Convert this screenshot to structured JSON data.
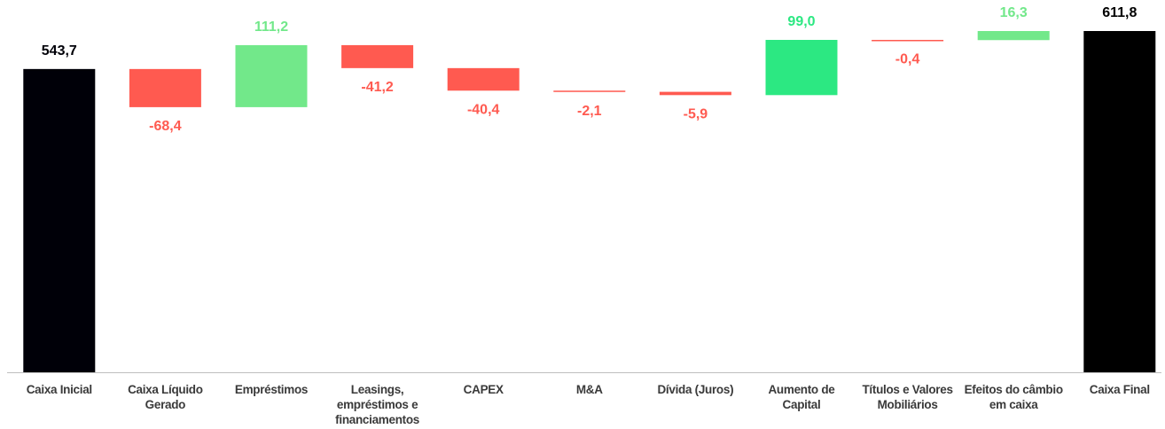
{
  "chart_data": {
    "type": "waterfall",
    "categories": [
      "Caixa Inicial",
      "Caixa Líquido Gerado",
      "Empréstimos",
      "Leasings, empréstimos e financiamentos",
      "CAPEX",
      "M&A",
      "Dívida (Juros)",
      "Aumento de Capital",
      "Títulos e Valores Mobiliários",
      "Efeitos do câmbio em caixa",
      "Caixa Final"
    ],
    "values": [
      543.7,
      -68.4,
      111.2,
      -41.2,
      -40.4,
      -2.1,
      -5.9,
      99.0,
      -0.4,
      16.3,
      611.8
    ],
    "value_labels": [
      "543,7",
      "-68,4",
      "111,2",
      "-41,2",
      "-40,4",
      "-2,1",
      "-5,9",
      "99,0",
      "-0,4",
      "16,3",
      "611,8"
    ],
    "measure": [
      "absolute",
      "relative",
      "relative",
      "relative",
      "relative",
      "relative",
      "relative",
      "relative",
      "relative",
      "relative",
      "total"
    ],
    "colors": [
      "#000008",
      "#ff5a50",
      "#72e88a",
      "#ff5a50",
      "#ff5a50",
      "#ff5a50",
      "#ff5a50",
      "#2ce882",
      "#ff5a50",
      "#72e88a",
      "#000000"
    ]
  }
}
